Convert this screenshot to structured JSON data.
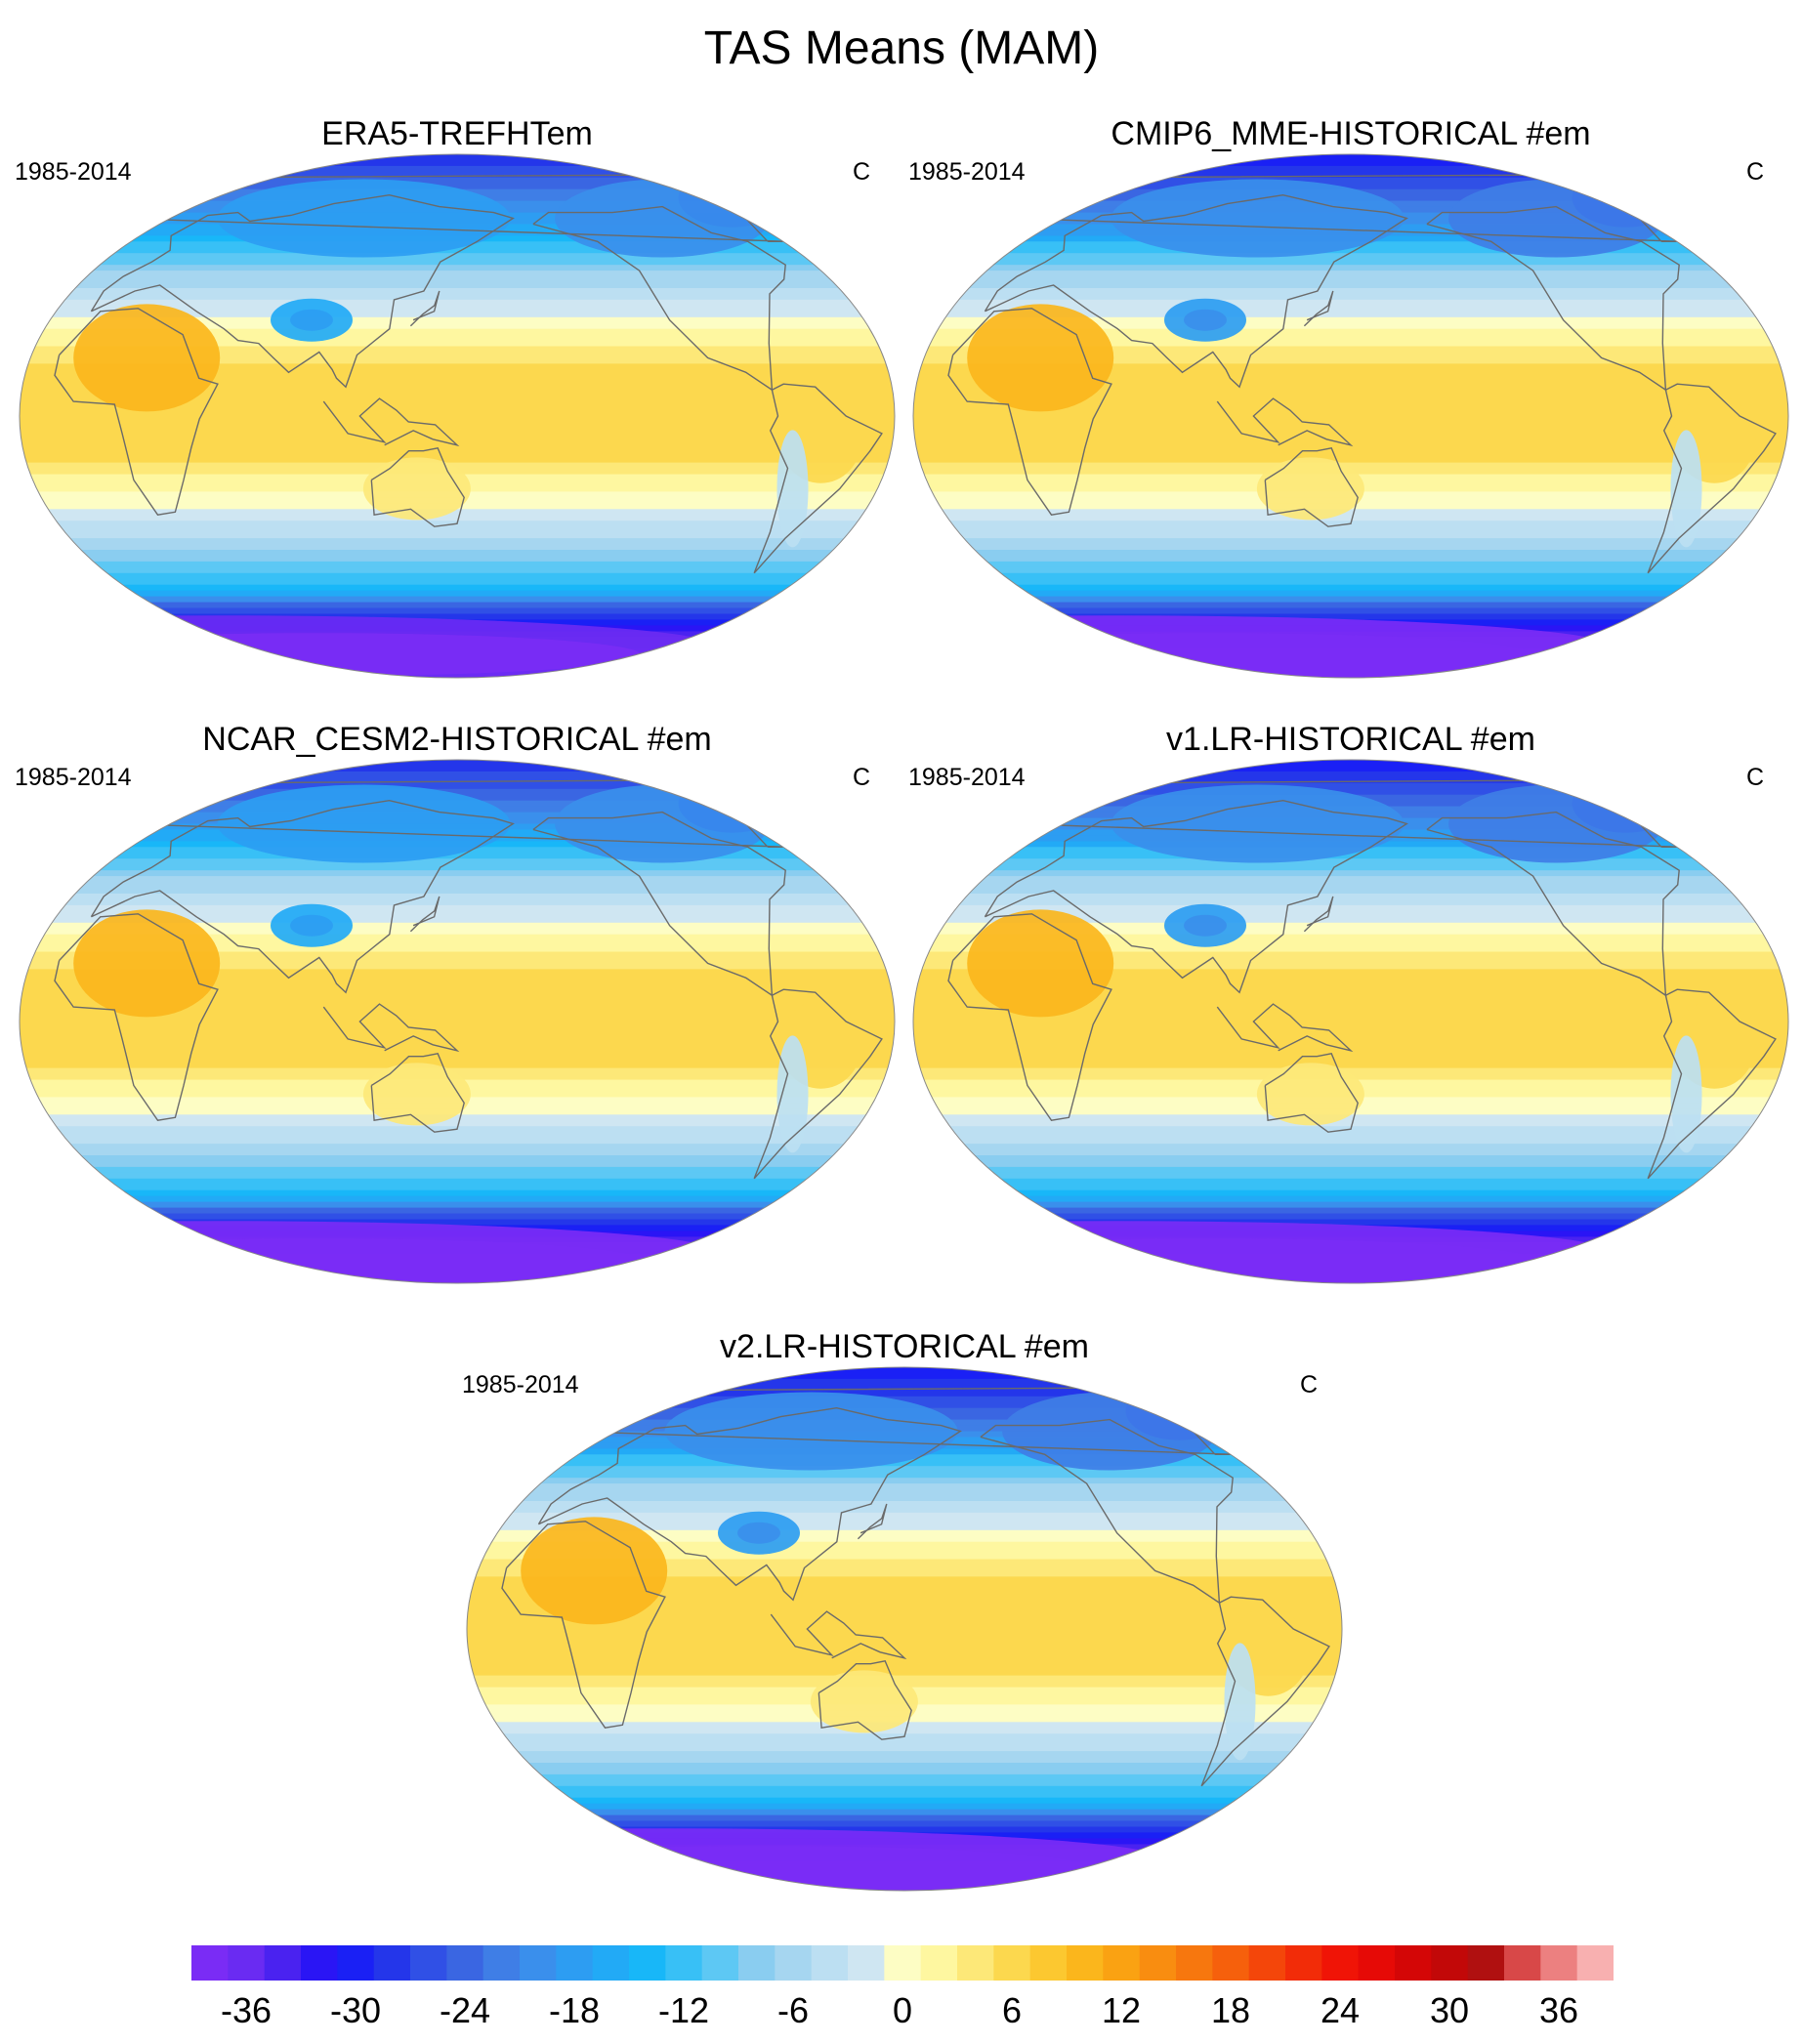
{
  "title": "TAS Means (MAM)",
  "panels": [
    {
      "title": "ERA5-TREFHTem",
      "period": "1985-2014",
      "units": "C",
      "variant": "era5"
    },
    {
      "title": "CMIP6_MME-HISTORICAL  #em",
      "period": "1985-2014",
      "units": "C",
      "variant": "cmip6"
    },
    {
      "title": "NCAR_CESM2-HISTORICAL  #em",
      "period": "1985-2014",
      "units": "C",
      "variant": "cesm2"
    },
    {
      "title": "v1.LR-HISTORICAL  #em",
      "period": "1985-2014",
      "units": "C",
      "variant": "v1"
    },
    {
      "title": "v2.LR-HISTORICAL  #em",
      "period": "1985-2014",
      "units": "C",
      "variant": "v2"
    }
  ],
  "colorbar": {
    "levels_min": -39,
    "levels_max": 39,
    "step": 3,
    "tick_labels": [
      "-36",
      "-30",
      "-24",
      "-18",
      "-12",
      "-6",
      "0",
      "6",
      "12",
      "18",
      "24",
      "30",
      "36"
    ],
    "tick_values": [
      -36,
      -30,
      -24,
      -18,
      -12,
      -6,
      0,
      6,
      12,
      18,
      24,
      30,
      36
    ],
    "colors": [
      "#7a2cf5",
      "#6a2bf2",
      "#4a22f0",
      "#2a15f5",
      "#1a20f5",
      "#2436ea",
      "#3050e6",
      "#3a66e2",
      "#3f7ee6",
      "#3a8fec",
      "#2d9df2",
      "#22aaf6",
      "#18b7f8",
      "#38c0f6",
      "#5dc8f4",
      "#8acdf0",
      "#a6d6f0",
      "#bcdff2",
      "#cfe6f2",
      "#fdfdc4",
      "#fef7a0",
      "#fde878",
      "#fcd84e",
      "#fcc830",
      "#fbb61c",
      "#faa212",
      "#f98d10",
      "#f7770e",
      "#f6600c",
      "#f4460a",
      "#f22c08",
      "#f01406",
      "#e60a06",
      "#d40606",
      "#c20808",
      "#b01010",
      "#d84848",
      "#ec8080",
      "#f8b0b0"
    ]
  }
}
